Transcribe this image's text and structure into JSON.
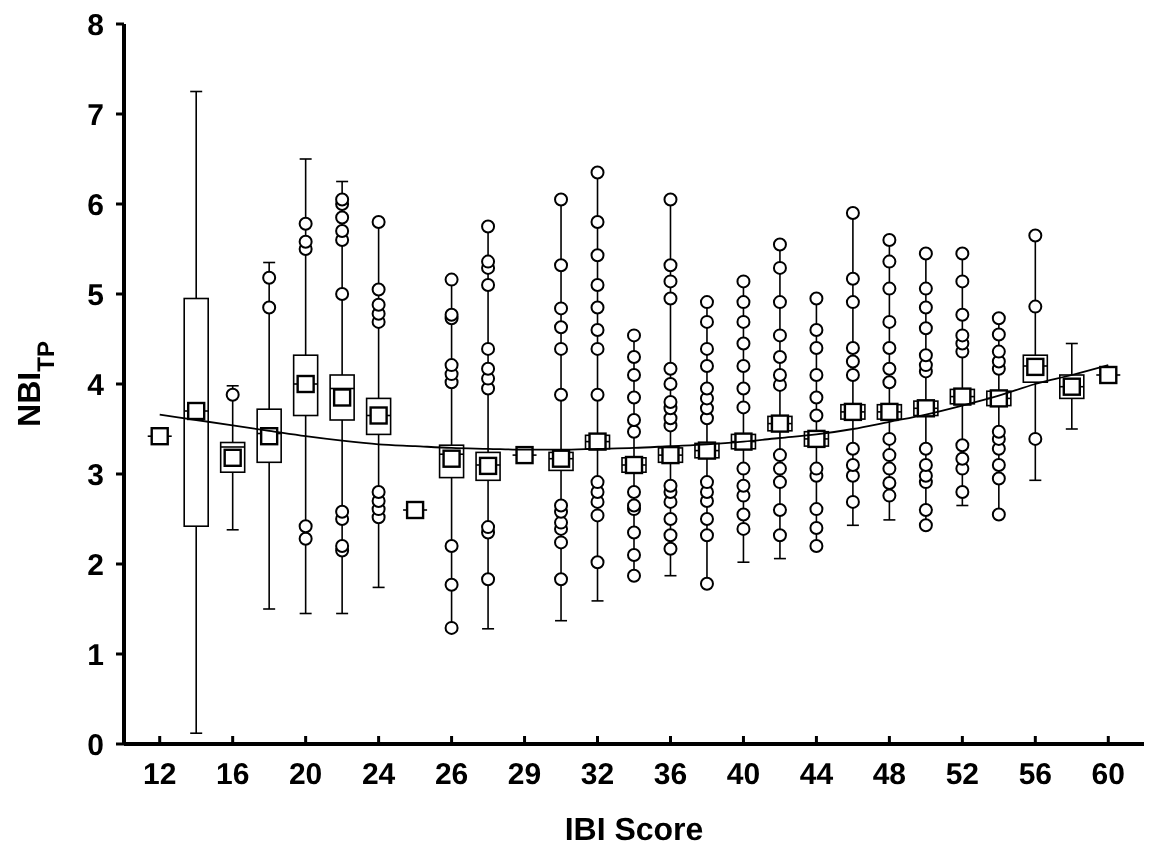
{
  "chart_data": {
    "type": "box",
    "xlabel": "IBI Score",
    "ylabel": "NBI$_{TP}$",
    "categories": [
      "12",
      null,
      "16",
      null,
      "20",
      null,
      "24",
      null,
      "26",
      null,
      "29",
      null,
      "32",
      null,
      "36",
      null,
      "40",
      null,
      "44",
      null,
      "48",
      null,
      "52",
      null,
      "56",
      null,
      "60"
    ],
    "ylim": [
      0,
      8
    ],
    "yticks": [
      0,
      1,
      2,
      3,
      4,
      5,
      6,
      7,
      8
    ],
    "grid": false,
    "series": [
      {
        "type": "box",
        "color": "#000000",
        "marker": "square",
        "boxes": [
          {
            "low": 3.42,
            "q1": 3.42,
            "median": 3.42,
            "q3": 3.42,
            "high": 3.42,
            "mean": 3.42
          },
          {
            "low": 0.12,
            "q1": 2.42,
            "median": 3.7,
            "q3": 4.95,
            "high": 7.25,
            "mean": 3.7
          },
          {
            "low": 2.38,
            "q1": 3.02,
            "median": 3.3,
            "q3": 3.35,
            "high": 3.98,
            "mean": 3.18,
            "outliers": [
              3.88
            ]
          },
          {
            "low": 1.5,
            "q1": 3.13,
            "median": 3.45,
            "q3": 3.72,
            "high": 5.35,
            "mean": 3.42,
            "outliers": [
              4.85,
              5.18
            ]
          },
          {
            "low": 1.45,
            "q1": 3.65,
            "median": 4.0,
            "q3": 4.32,
            "high": 6.5,
            "mean": 4.0,
            "outliers": [
              2.28,
              2.42,
              5.5,
              5.58,
              5.78
            ]
          },
          {
            "low": 1.45,
            "q1": 3.6,
            "median": 3.95,
            "q3": 4.1,
            "high": 6.25,
            "mean": 3.85,
            "outliers": [
              2.15,
              2.2,
              2.5,
              2.58,
              5.0,
              5.6,
              5.7,
              5.85,
              6.0,
              6.05
            ]
          },
          {
            "low": 1.74,
            "q1": 3.44,
            "median": 3.65,
            "q3": 3.84,
            "high": 5.8,
            "mean": 3.65,
            "outliers": [
              2.52,
              2.61,
              2.7,
              2.8,
              4.69,
              4.78,
              4.88,
              5.05,
              5.8
            ]
          },
          {
            "low": 2.6,
            "q1": 2.6,
            "median": 2.6,
            "q3": 2.6,
            "high": 2.6,
            "mean": 2.6
          },
          {
            "low": 1.29,
            "q1": 2.96,
            "median": 3.22,
            "q3": 3.32,
            "high": 5.16,
            "mean": 3.17,
            "outliers": [
              1.29,
              1.77,
              2.2,
              4.02,
              4.11,
              4.21,
              4.73,
              4.77,
              5.16
            ]
          },
          {
            "low": 1.28,
            "q1": 2.93,
            "median": 3.1,
            "q3": 3.24,
            "high": 5.75,
            "mean": 3.09,
            "outliers": [
              1.83,
              2.35,
              2.41,
              3.95,
              4.06,
              4.17,
              4.39,
              5.1,
              5.29,
              5.36,
              5.75
            ]
          },
          {
            "low": 3.21,
            "q1": 3.21,
            "median": 3.21,
            "q3": 3.21,
            "high": 3.21,
            "mean": 3.21
          },
          {
            "low": 1.37,
            "q1": 3.04,
            "median": 3.17,
            "q3": 3.24,
            "high": 6.05,
            "mean": 3.17,
            "outliers": [
              1.83,
              2.24,
              2.39,
              2.46,
              2.58,
              2.65,
              3.88,
              4.39,
              4.63,
              4.84,
              5.32,
              6.05
            ]
          },
          {
            "low": 1.59,
            "q1": 3.28,
            "median": 3.36,
            "q3": 3.43,
            "high": 6.35,
            "mean": 3.36,
            "outliers": [
              2.02,
              2.54,
              2.69,
              2.8,
              2.91,
              3.88,
              4.39,
              4.6,
              4.85,
              5.1,
              5.43,
              5.8,
              6.35
            ]
          },
          {
            "low": 1.87,
            "q1": 3.02,
            "median": 3.1,
            "q3": 3.18,
            "high": 4.54,
            "mean": 3.1,
            "outliers": [
              1.87,
              2.1,
              2.35,
              2.61,
              2.65,
              2.8,
              3.47,
              3.6,
              3.85,
              4.1,
              4.3,
              4.54
            ]
          },
          {
            "low": 1.87,
            "q1": 3.13,
            "median": 3.21,
            "q3": 3.29,
            "high": 6.05,
            "mean": 3.21,
            "outliers": [
              2.17,
              2.32,
              2.5,
              2.69,
              2.8,
              2.87,
              3.54,
              3.62,
              3.73,
              3.8,
              4.0,
              4.17,
              4.95,
              5.14,
              5.32,
              6.05
            ]
          },
          {
            "low": 1.78,
            "q1": 3.18,
            "median": 3.26,
            "q3": 3.34,
            "high": 4.91,
            "mean": 3.26,
            "outliers": [
              1.78,
              2.32,
              2.5,
              2.7,
              2.8,
              2.91,
              3.62,
              3.73,
              3.84,
              3.95,
              4.2,
              4.39,
              4.69,
              4.91
            ]
          },
          {
            "low": 2.02,
            "q1": 3.28,
            "median": 3.36,
            "q3": 3.44,
            "high": 5.14,
            "mean": 3.36,
            "outliers": [
              2.39,
              2.55,
              2.76,
              2.87,
              3.06,
              3.74,
              3.95,
              4.2,
              4.45,
              4.69,
              4.91,
              5.14
            ]
          },
          {
            "low": 2.06,
            "q1": 3.48,
            "median": 3.56,
            "q3": 3.64,
            "high": 5.55,
            "mean": 3.56,
            "outliers": [
              2.32,
              2.6,
              2.91,
              3.06,
              3.21,
              3.99,
              4.1,
              4.3,
              4.54,
              4.91,
              5.29,
              5.55
            ]
          },
          {
            "low": 2.2,
            "q1": 3.31,
            "median": 3.39,
            "q3": 3.47,
            "high": 4.95,
            "mean": 3.39,
            "outliers": [
              2.2,
              2.4,
              2.61,
              2.98,
              3.06,
              3.65,
              3.85,
              4.1,
              4.4,
              4.6,
              4.95
            ]
          },
          {
            "low": 2.43,
            "q1": 3.61,
            "median": 3.69,
            "q3": 3.77,
            "high": 5.9,
            "mean": 3.69,
            "outliers": [
              2.69,
              2.98,
              3.1,
              3.28,
              4.1,
              4.25,
              4.4,
              4.91,
              5.17,
              5.9
            ]
          },
          {
            "low": 2.49,
            "q1": 3.61,
            "median": 3.69,
            "q3": 3.77,
            "high": 5.6,
            "mean": 3.69,
            "outliers": [
              2.76,
              2.9,
              3.06,
              3.21,
              3.39,
              4.02,
              4.17,
              4.4,
              4.69,
              5.06,
              5.36,
              5.6
            ]
          },
          {
            "low": 2.43,
            "q1": 3.65,
            "median": 3.73,
            "q3": 3.81,
            "high": 5.45,
            "mean": 3.73,
            "outliers": [
              2.43,
              2.6,
              2.91,
              2.98,
              3.1,
              3.28,
              4.14,
              4.21,
              4.32,
              4.62,
              4.85,
              5.06,
              5.45
            ]
          },
          {
            "low": 2.65,
            "q1": 3.78,
            "median": 3.86,
            "q3": 3.94,
            "high": 5.45,
            "mean": 3.86,
            "outliers": [
              2.8,
              3.06,
              3.17,
              3.32,
              4.36,
              4.45,
              4.54,
              4.77,
              5.14,
              5.45
            ]
          },
          {
            "low": 2.55,
            "q1": 3.76,
            "median": 3.84,
            "q3": 3.92,
            "high": 4.75,
            "mean": 3.84,
            "outliers": [
              2.55,
              2.95,
              3.1,
              3.28,
              3.39,
              3.47,
              4.17,
              4.25,
              4.36,
              4.55,
              4.73
            ]
          },
          {
            "low": 2.93,
            "q1": 4.02,
            "median": 4.2,
            "q3": 4.32,
            "high": 5.65,
            "mean": 4.19,
            "outliers": [
              3.39,
              4.86,
              5.65
            ]
          },
          {
            "low": 3.5,
            "q1": 3.84,
            "median": 3.97,
            "q3": 4.1,
            "high": 4.45,
            "mean": 3.97
          },
          {
            "low": 4.1,
            "q1": 4.1,
            "median": 4.1,
            "q3": 4.1,
            "high": 4.1,
            "mean": 4.1
          }
        ]
      },
      {
        "type": "line",
        "color": "#000000",
        "line_style": "solid",
        "marker": "none",
        "values": [
          3.66,
          3.6,
          3.54,
          3.48,
          3.42,
          3.37,
          3.33,
          3.31,
          3.29,
          3.28,
          3.27,
          3.27,
          3.28,
          3.29,
          3.31,
          3.33,
          3.36,
          3.4,
          3.44,
          3.5,
          3.58,
          3.66,
          3.76,
          3.87,
          4.0,
          4.1,
          4.21
        ]
      }
    ]
  }
}
